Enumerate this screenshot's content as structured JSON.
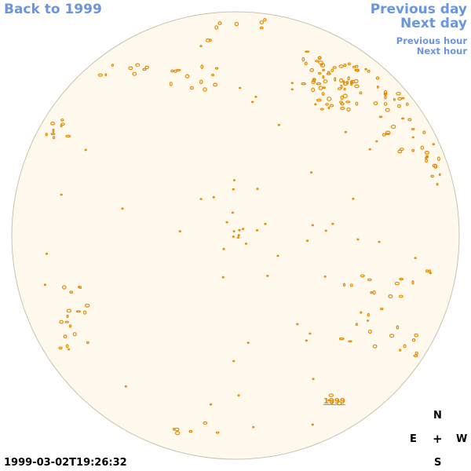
{
  "nav": {
    "back": "Back to 1999",
    "previous_day": "Previous day",
    "next_day": "Next day",
    "previous_hour": "Previous hour",
    "next_hour": "Next hour"
  },
  "timestamp": "1999-03-02T19:26:32",
  "compass": {
    "north": "N",
    "south": "S",
    "east": "E",
    "west": "W",
    "center": "+"
  },
  "disk_label": "1999",
  "colors": {
    "disk": "#fef9ec",
    "contour": "#e58a00",
    "link": "#6b95dd",
    "limb": "#c9c2b2"
  }
}
